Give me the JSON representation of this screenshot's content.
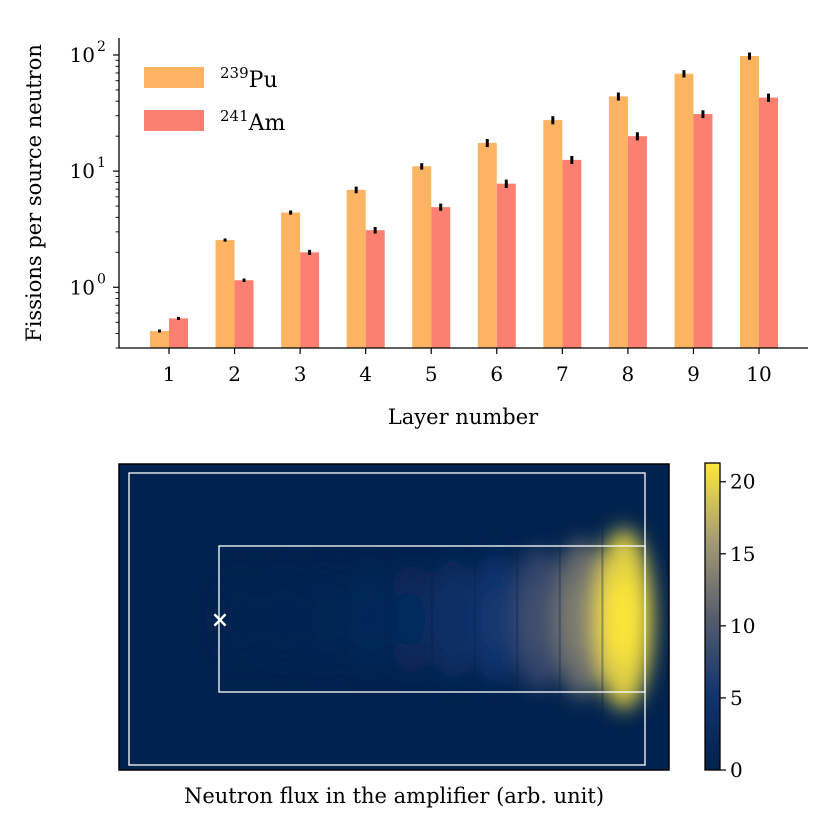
{
  "chart_data": [
    {
      "type": "bar",
      "xlabel": "Layer number",
      "ylabel": "Fissions per source neutron",
      "yscale": "log",
      "ylim": [
        0.3,
        140
      ],
      "yticks": [
        1,
        10,
        100
      ],
      "ytick_labels": [
        "10",
        "10",
        "10"
      ],
      "ytick_exps": [
        "0",
        "1",
        "2"
      ],
      "categories": [
        "1",
        "2",
        "3",
        "4",
        "5",
        "6",
        "7",
        "8",
        "9",
        "10"
      ],
      "legend_position": "top-left",
      "series": [
        {
          "name": "Pu",
          "sup": "239",
          "color": "#fdb462",
          "values": [
            0.42,
            2.55,
            4.4,
            6.9,
            11.0,
            17.5,
            27.5,
            44.0,
            69.0,
            98.0
          ],
          "errors": [
            0.01,
            0.08,
            0.18,
            0.45,
            0.7,
            1.4,
            2.2,
            3.5,
            5.0,
            7.0
          ]
        },
        {
          "name": "Am",
          "sup": "241",
          "color": "#fb8072",
          "values": [
            0.54,
            1.15,
            2.0,
            3.1,
            4.9,
            7.8,
            12.5,
            20.0,
            31.0,
            43.0
          ],
          "errors": [
            0.01,
            0.04,
            0.1,
            0.2,
            0.35,
            0.65,
            1.0,
            1.6,
            2.4,
            3.5
          ]
        }
      ]
    },
    {
      "type": "heatmap",
      "xlabel": "Neutron flux in the amplifier (arb. unit)",
      "colorbar": {
        "range": [
          0,
          21.3
        ],
        "ticks": [
          0,
          5,
          10,
          15,
          20
        ],
        "tick_labels": [
          "0",
          "5",
          "10",
          "15",
          "20"
        ],
        "colors": [
          "#00224e",
          "#123570",
          "#575d6d",
          "#a59c74",
          "#fee838"
        ]
      },
      "source_marker": "×",
      "outline_color": "#ffffff",
      "peak_value": 21.3,
      "layer_count": 10
    }
  ]
}
